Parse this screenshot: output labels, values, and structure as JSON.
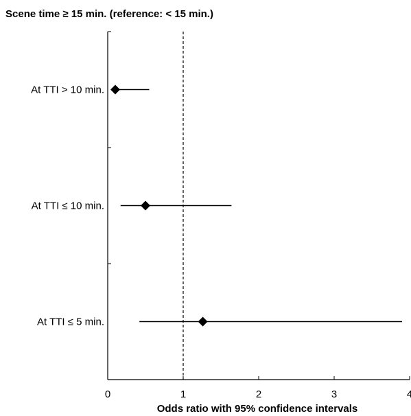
{
  "chart_data": {
    "type": "forest",
    "title": "Scene time ≥ 15 min. (reference: < 15 min.)",
    "xlabel": "Odds ratio with 95% confidence intervals",
    "ylabel": "",
    "xlim": [
      0,
      4
    ],
    "xticks": [
      0,
      1,
      2,
      3,
      4
    ],
    "reference_line": 1,
    "categories": [
      "At TTI > 10 min.",
      "At TTI ≤ 10 min.",
      "At TTI ≤ 5 min."
    ],
    "series": [
      {
        "points": [
          {
            "label": "At TTI > 10 min.",
            "estimate": 0.1,
            "lower": 0.05,
            "upper": 0.55
          },
          {
            "label": "At TTI ≤ 10 min.",
            "estimate": 0.5,
            "lower": 0.17,
            "upper": 1.64
          },
          {
            "label": "At TTI ≤ 5 min.",
            "estimate": 1.26,
            "lower": 0.42,
            "upper": 3.9
          }
        ]
      }
    ],
    "colors": {
      "marker": "#000000",
      "line": "#000000"
    }
  }
}
